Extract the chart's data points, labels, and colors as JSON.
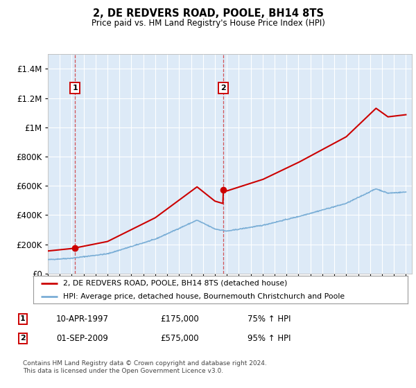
{
  "title": "2, DE REDVERS ROAD, POOLE, BH14 8TS",
  "subtitle": "Price paid vs. HM Land Registry's House Price Index (HPI)",
  "legend_line1": "2, DE REDVERS ROAD, POOLE, BH14 8TS (detached house)",
  "legend_line2": "HPI: Average price, detached house, Bournemouth Christchurch and Poole",
  "sale1_date": "10-APR-1997",
  "sale1_price": "£175,000",
  "sale1_hpi": "75% ↑ HPI",
  "sale1_year": 1997.27,
  "sale1_value": 175000,
  "sale2_date": "01-SEP-2009",
  "sale2_price": "£575,000",
  "sale2_hpi": "95% ↑ HPI",
  "sale2_year": 2009.67,
  "sale2_value": 575000,
  "footnote_line1": "Contains HM Land Registry data © Crown copyright and database right 2024.",
  "footnote_line2": "This data is licensed under the Open Government Licence v3.0.",
  "bg_color": "#ddeaf7",
  "red_color": "#cc0000",
  "blue_color": "#7aaed6",
  "ylim": [
    0,
    1500000
  ],
  "xlim_start": 1995.0,
  "xlim_end": 2025.5,
  "yticks": [
    0,
    200000,
    400000,
    600000,
    800000,
    1000000,
    1200000,
    1400000
  ]
}
